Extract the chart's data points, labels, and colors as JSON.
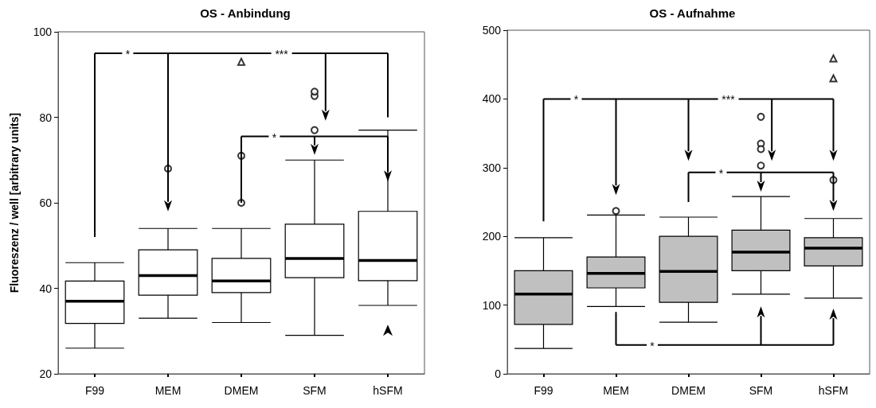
{
  "chart_data": [
    {
      "type": "box",
      "title": "OS - Anbindung",
      "ylabel": "Fluoreszenz / well [arbitrary units]",
      "categories": [
        "F99",
        "MEM",
        "DMEM",
        "SFM",
        "hSFM"
      ],
      "ylim": [
        20,
        100
      ],
      "yticks": [
        20,
        40,
        60,
        80,
        100
      ],
      "grid": false,
      "annotations": [
        "*",
        "***",
        "*"
      ],
      "series": [
        {
          "color": "#ffffff",
          "boxes": [
            {
              "low": 26,
              "q1": 31.8,
              "median": 37,
              "q3": 41.7,
              "high": 46
            },
            {
              "low": 33,
              "q1": 38.4,
              "median": 43,
              "q3": 49,
              "high": 54
            },
            {
              "low": 32,
              "q1": 39,
              "median": 41.7,
              "q3": 47,
              "high": 54
            },
            {
              "low": 29,
              "q1": 42.5,
              "median": 47,
              "q3": 55,
              "high": 70
            },
            {
              "low": 36,
              "q1": 41.8,
              "median": 46.5,
              "q3": 58,
              "high": 77
            }
          ]
        },
        {
          "type": "scatter",
          "marker": "circle",
          "color": "#000000",
          "x": [
            "MEM",
            "DMEM",
            "DMEM",
            "SFM",
            "SFM",
            "SFM"
          ],
          "values": [
            68,
            71,
            60,
            77,
            85,
            86
          ]
        },
        {
          "type": "scatter",
          "marker": "triangle",
          "color": "#000000",
          "x": [
            "DMEM"
          ],
          "values": [
            93
          ]
        }
      ]
    },
    {
      "type": "box",
      "title": "OS - Aufnahme",
      "categories": [
        "F99",
        "MEM",
        "DMEM",
        "SFM",
        "hSFM"
      ],
      "ylim": [
        0,
        500
      ],
      "yticks": [
        0,
        100,
        200,
        300,
        400,
        500
      ],
      "grid": false,
      "annotations": [
        "*",
        "***",
        "*",
        "*"
      ],
      "series": [
        {
          "color": "#c0c0c0",
          "boxes": [
            {
              "low": 37,
              "q1": 72,
              "median": 116,
              "q3": 150,
              "high": 198
            },
            {
              "low": 98,
              "q1": 125,
              "median": 146,
              "q3": 170,
              "high": 231
            },
            {
              "low": 75,
              "q1": 104,
              "median": 149,
              "q3": 200,
              "high": 228
            },
            {
              "low": 116,
              "q1": 150,
              "median": 177,
              "q3": 209,
              "high": 258
            },
            {
              "low": 110,
              "q1": 157,
              "median": 183,
              "q3": 198,
              "high": 226
            }
          ]
        },
        {
          "type": "scatter",
          "marker": "circle",
          "color": "#000000",
          "x": [
            "MEM",
            "SFM",
            "SFM",
            "SFM",
            "SFM",
            "hSFM"
          ],
          "values": [
            237,
            374,
            335,
            327,
            303,
            282
          ]
        },
        {
          "type": "scatter",
          "marker": "triangle",
          "color": "#000000",
          "x": [
            "hSFM",
            "hSFM"
          ],
          "values": [
            430,
            459
          ]
        }
      ]
    }
  ]
}
